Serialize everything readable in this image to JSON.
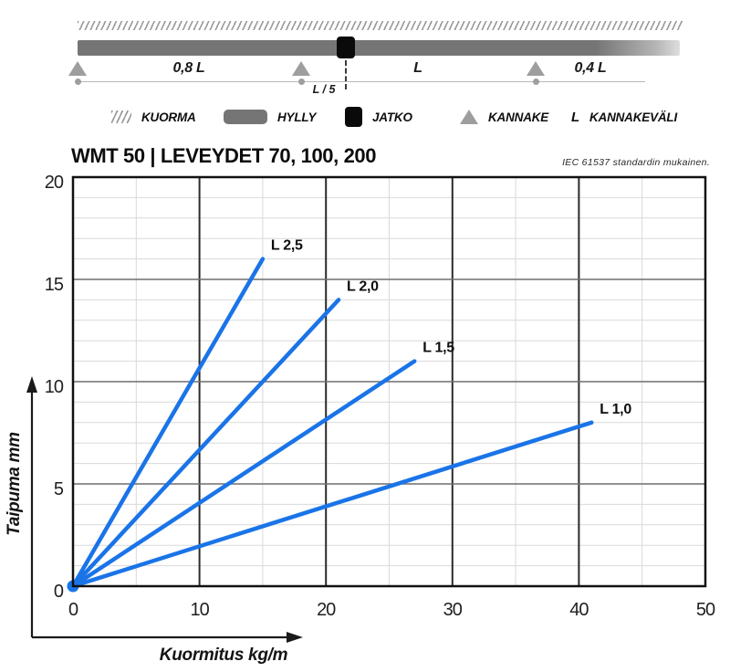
{
  "header": {
    "title": "WMT 50 | LEVEYDET 70, 100, 200",
    "note": "IEC 61537 standardin mukainen."
  },
  "diagram": {
    "span_labels": [
      "0,8 L",
      "L",
      "0,4 L"
    ],
    "sub_label": "L / 5"
  },
  "legend": {
    "items": [
      {
        "name": "kuorma",
        "label": "KUORMA"
      },
      {
        "name": "hylly",
        "label": "HYLLY"
      },
      {
        "name": "jatko",
        "label": "JATKO"
      },
      {
        "name": "kannake",
        "label": "KANNAKE"
      },
      {
        "name": "kannakevali",
        "symbol": "L",
        "label": "KANNAKEVÄLI"
      }
    ]
  },
  "colors": {
    "line": "#1a74e8",
    "beam": "#757575",
    "support": "#9e9e9e",
    "joint": "#0a0a0a",
    "grid_minor": "#d9d9d9",
    "grid_major_x": "#2b2b2b",
    "grid_major_y": "#6f6f6f",
    "frame": "#111111"
  },
  "chart_data": {
    "type": "line",
    "title": "WMT 50 | LEVEYDET 70, 100, 200",
    "standard_note": "IEC 61537 standardin mukainen.",
    "xlabel": "Kuormitus kg/m",
    "ylabel": "Taipuma mm",
    "xlim": [
      0,
      50
    ],
    "ylim": [
      0,
      20
    ],
    "x_ticks": [
      0,
      10,
      20,
      30,
      40,
      50
    ],
    "y_ticks": [
      0,
      5,
      10,
      15,
      20
    ],
    "x_minor_step": 5,
    "y_minor_step": 1,
    "grid": true,
    "legend_position": "labels-at-line-ends",
    "line_color": "#1a74e8",
    "series": [
      {
        "name": "L 2,5",
        "points": [
          [
            0,
            0
          ],
          [
            15,
            16
          ]
        ]
      },
      {
        "name": "L 2,0",
        "points": [
          [
            0,
            0
          ],
          [
            21,
            14
          ]
        ]
      },
      {
        "name": "L 1,5",
        "points": [
          [
            0,
            0
          ],
          [
            27,
            11
          ]
        ]
      },
      {
        "name": "L 1,0",
        "points": [
          [
            0,
            0
          ],
          [
            41,
            8
          ]
        ]
      }
    ]
  }
}
